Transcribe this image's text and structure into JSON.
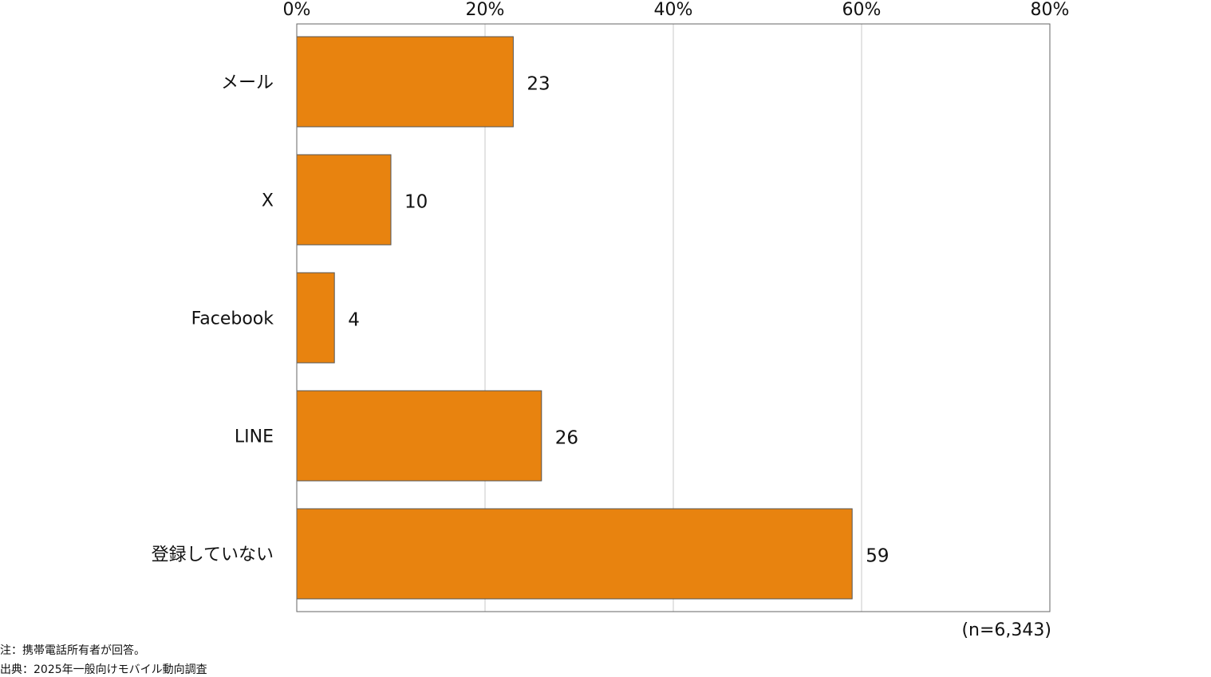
{
  "chart_data": {
    "type": "bar",
    "orientation": "horizontal",
    "categories": [
      "メール",
      "X",
      "Facebook",
      "LINE",
      "登録していない"
    ],
    "values": [
      23,
      10,
      4,
      26,
      59
    ],
    "xlim": [
      0,
      80
    ],
    "xticks": [
      0,
      20,
      40,
      60,
      80
    ],
    "tick_labels": [
      "0%",
      "20%",
      "40%",
      "60%",
      "80%"
    ],
    "value_labels": [
      "23",
      "10",
      "4",
      "26",
      "59"
    ],
    "bar_color": "#E8830F",
    "grid": true
  },
  "sample_size": "(n=6,343)",
  "notes": {
    "note": "注：携帯電話所有者が回答。",
    "source": "出典：2025年一般向けモバイル動向調査"
  }
}
